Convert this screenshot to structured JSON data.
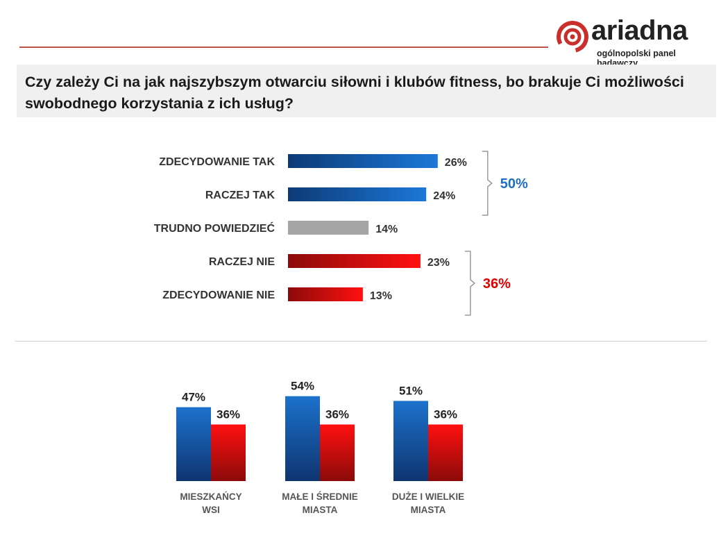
{
  "logo": {
    "brand": "ariadna",
    "tagline": "ogólnopolski panel badawczy",
    "icon": "spiral-logo-icon"
  },
  "question": "Czy zależy Ci na jak najszybszym otwarciu siłowni i klubów fitness, bo brakuje Ci możliwości swobodnego korzystania z ich usług?",
  "colors": {
    "blue_dark": "#0d3a75",
    "blue_light": "#1c78d8",
    "gray": "#a6a6a6",
    "red_dark": "#8b0a0a",
    "red_light": "#ff1010",
    "blue_text": "#1f6fbf",
    "red_text": "#e00000"
  },
  "chart_data": [
    {
      "type": "bar",
      "orientation": "horizontal",
      "categories": [
        "ZDECYDOWANIE TAK",
        "RACZEJ TAK",
        "TRUDNO POWIEDZIEĆ",
        "RACZEJ NIE",
        "ZDECYDOWANIE NIE"
      ],
      "values": [
        26,
        24,
        14,
        23,
        13
      ],
      "value_labels": [
        "26%",
        "24%",
        "14%",
        "23%",
        "13%"
      ],
      "bar_colors": [
        "blue",
        "blue",
        "gray",
        "red",
        "red"
      ],
      "groups": [
        {
          "indices": [
            0,
            1
          ],
          "total": 50,
          "label": "50%",
          "color": "blue"
        },
        {
          "indices": [
            3,
            4
          ],
          "total": 36,
          "label": "36%",
          "color": "red"
        }
      ],
      "xlim": [
        0,
        100
      ]
    },
    {
      "type": "bar",
      "orientation": "vertical",
      "categories": [
        [
          "MIESZKAŃCY",
          "WSI"
        ],
        [
          "MAŁE I ŚREDNIE",
          "MIASTA"
        ],
        [
          "DUŻE I WIELKIE",
          "MIASTA"
        ]
      ],
      "series": [
        {
          "color": "blue",
          "values": [
            47,
            54,
            51
          ],
          "labels": [
            "47%",
            "54%",
            "51%"
          ]
        },
        {
          "color": "red",
          "values": [
            36,
            36,
            36
          ],
          "labels": [
            "36%",
            "36%",
            "36%"
          ]
        }
      ],
      "ylim": [
        0,
        100
      ]
    }
  ]
}
